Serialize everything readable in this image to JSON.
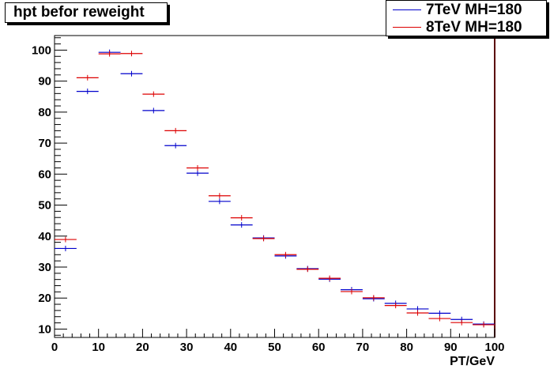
{
  "title": "hpt befor reweight",
  "chart_data": {
    "type": "histogram",
    "xlabel": "PT/GeV",
    "ylabel": "",
    "xlim": [
      0,
      100
    ],
    "ylim": [
      7.3,
      104.7
    ],
    "x_ticks": [
      "0",
      "10",
      "20",
      "30",
      "40",
      "50",
      "60",
      "70",
      "80",
      "90",
      "100"
    ],
    "y_ticks": [
      "10",
      "20",
      "30",
      "40",
      "50",
      "60",
      "70",
      "80",
      "90",
      "100"
    ],
    "bin_width": 5,
    "bin_edges": [
      0,
      5,
      10,
      15,
      20,
      25,
      30,
      35,
      40,
      45,
      50,
      55,
      60,
      65,
      70,
      75,
      80,
      85,
      90,
      95,
      100
    ],
    "series": [
      {
        "name": "7TeV MH=180",
        "color": "#0000cc",
        "values": [
          36.0,
          86.7,
          99.3,
          92.4,
          80.5,
          69.2,
          60.3,
          51.2,
          43.6,
          39.4,
          33.6,
          29.5,
          26.1,
          22.7,
          19.8,
          18.3,
          16.5,
          15.1,
          13.1,
          11.6
        ]
      },
      {
        "name": "8TeV MH=180",
        "color": "#dd0000",
        "values": [
          38.9,
          91.1,
          98.8,
          98.9,
          85.8,
          74.0,
          62.0,
          53.0,
          45.9,
          39.2,
          34.0,
          29.3,
          26.4,
          22.1,
          20.1,
          17.6,
          15.2,
          13.4,
          12.1,
          11.4
        ]
      }
    ],
    "legend_position": "top-right",
    "grid": false
  }
}
